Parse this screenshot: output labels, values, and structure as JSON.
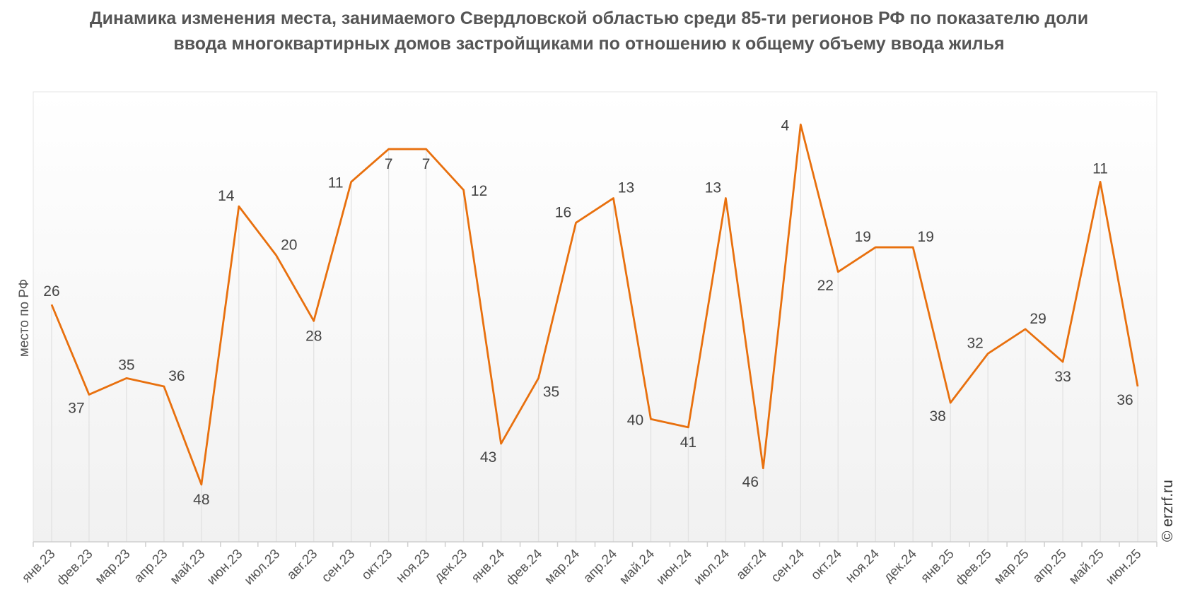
{
  "chart_data": {
    "type": "line",
    "title": "Динамика изменения места, занимаемого Свердловской областью среди 85-ти регионов РФ по показателю доли ввода многоквартирных домов застройщиками по отношению к общему объему ввода жилья",
    "xlabel": "",
    "ylabel": "место по РФ",
    "y_reversed": true,
    "ylim": [
      0,
      55
    ],
    "grid": "vertical",
    "categories": [
      "янв.23",
      "фев.23",
      "мар.23",
      "апр.23",
      "май.23",
      "июн.23",
      "июл.23",
      "авг.23",
      "сен.23",
      "окт.23",
      "ноя.23",
      "дек.23",
      "янв.24",
      "фев.24",
      "мар.24",
      "апр.24",
      "май.24",
      "июн.24",
      "июл.24",
      "авг.24",
      "сен.24",
      "окт.24",
      "ноя.24",
      "дек.24",
      "янв.25",
      "фев.25",
      "мар.25",
      "апр.25",
      "май.25",
      "июн.25"
    ],
    "series": [
      {
        "name": "место по РФ",
        "color": "#e8700e",
        "values": [
          26,
          37,
          35,
          36,
          48,
          14,
          20,
          28,
          11,
          7,
          7,
          12,
          43,
          35,
          16,
          13,
          40,
          41,
          13,
          46,
          4,
          22,
          19,
          19,
          38,
          32,
          29,
          33,
          11,
          36
        ]
      }
    ]
  },
  "watermark": "© erzrf.ru"
}
